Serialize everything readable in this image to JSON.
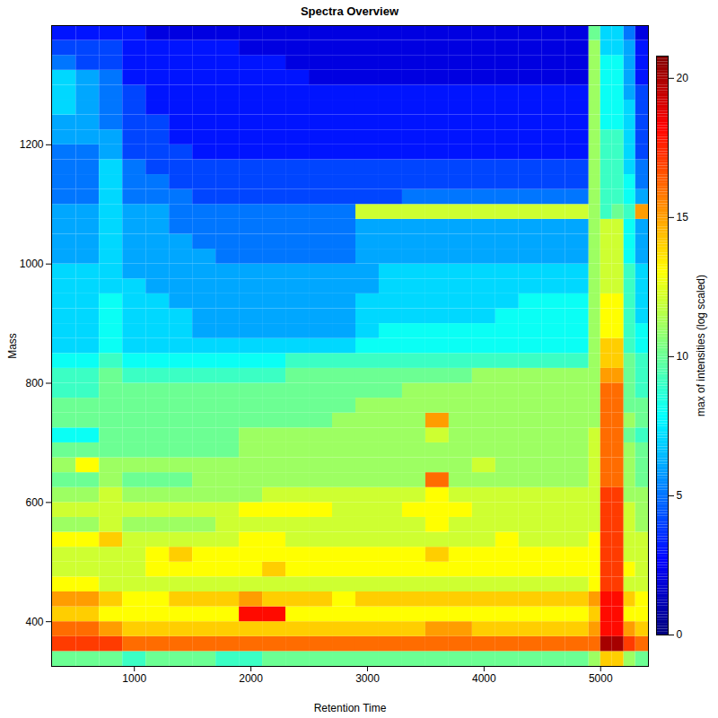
{
  "chart_data": {
    "type": "heatmap",
    "title": "Spectra Overview",
    "x_label": "Retention Time",
    "y_label": "Mass",
    "xlim": [
      290,
      5410
    ],
    "xticks": [
      1000,
      2000,
      3000,
      4000,
      5000
    ],
    "ylim": [
      325,
      1400
    ],
    "yticks": [
      400,
      600,
      800,
      1000,
      1200
    ],
    "x_bins": [
      290,
      500,
      700,
      900,
      1100,
      1300,
      1500,
      1700,
      1900,
      2100,
      2300,
      2500,
      2700,
      2900,
      3100,
      3300,
      3500,
      3700,
      3900,
      4100,
      4300,
      4500,
      4700,
      4900,
      5000,
      5100,
      5200,
      5300,
      5410
    ],
    "y_bins": [
      325,
      350,
      375,
      400,
      425,
      450,
      475,
      500,
      525,
      550,
      575,
      600,
      625,
      650,
      675,
      700,
      725,
      750,
      775,
      800,
      825,
      850,
      875,
      900,
      925,
      950,
      975,
      1000,
      1025,
      1050,
      1075,
      1100,
      1125,
      1150,
      1175,
      1200,
      1225,
      1250,
      1275,
      1300,
      1325,
      1350,
      1375,
      1400
    ],
    "values": [
      [
        10,
        10,
        10,
        9,
        10,
        10,
        10,
        9,
        9,
        10,
        10,
        10,
        10,
        10,
        10,
        10,
        10,
        10,
        10,
        10,
        10,
        10,
        10,
        11,
        14,
        14,
        11,
        10
      ],
      [
        17,
        17,
        17,
        16,
        16,
        16,
        16,
        16,
        16,
        16,
        16,
        16,
        16,
        16,
        16,
        16,
        16,
        16,
        16,
        16,
        16,
        16,
        16,
        16,
        20,
        20,
        17,
        16
      ],
      [
        16,
        16,
        15,
        14,
        14,
        14,
        14,
        14,
        14,
        14,
        14,
        14,
        14,
        14,
        14,
        14,
        15,
        15,
        14,
        14,
        14,
        14,
        14,
        15,
        18,
        18,
        15,
        14
      ],
      [
        14,
        14,
        13,
        13,
        13,
        13,
        13,
        13,
        18,
        18,
        13,
        13,
        13,
        13,
        13,
        13,
        13,
        13,
        13,
        13,
        13,
        13,
        13,
        14,
        18,
        18,
        13,
        13
      ],
      [
        15,
        15,
        14,
        13,
        13,
        14,
        14,
        14,
        15,
        14,
        14,
        14,
        13,
        14,
        14,
        14,
        14,
        14,
        14,
        14,
        14,
        14,
        14,
        15,
        18,
        18,
        14,
        13
      ],
      [
        13,
        13,
        12,
        12,
        12,
        12,
        12,
        12,
        12,
        12,
        12,
        12,
        12,
        12,
        12,
        12,
        12,
        12,
        12,
        12,
        12,
        12,
        12,
        13,
        17,
        17,
        12,
        12
      ],
      [
        12,
        12,
        12,
        12,
        13,
        13,
        13,
        13,
        13,
        14,
        13,
        13,
        13,
        13,
        13,
        13,
        13,
        13,
        13,
        13,
        13,
        13,
        13,
        13,
        17,
        17,
        13,
        12
      ],
      [
        12,
        12,
        12,
        12,
        13,
        14,
        13,
        13,
        13,
        13,
        13,
        13,
        13,
        13,
        13,
        13,
        14,
        13,
        13,
        13,
        13,
        13,
        13,
        13,
        17,
        17,
        12,
        12
      ],
      [
        13,
        13,
        14,
        12,
        12,
        12,
        12,
        12,
        13,
        13,
        12,
        12,
        12,
        12,
        12,
        12,
        12,
        12,
        12,
        13,
        12,
        12,
        12,
        13,
        17,
        17,
        12,
        12
      ],
      [
        11,
        11,
        12,
        11,
        11,
        11,
        11,
        12,
        12,
        12,
        12,
        12,
        12,
        12,
        12,
        12,
        13,
        12,
        12,
        12,
        12,
        12,
        12,
        12,
        17,
        17,
        12,
        11
      ],
      [
        12,
        12,
        12,
        12,
        12,
        12,
        12,
        12,
        13,
        13,
        13,
        13,
        12,
        12,
        12,
        13,
        13,
        13,
        12,
        12,
        12,
        12,
        12,
        12,
        17,
        17,
        12,
        11
      ],
      [
        11,
        11,
        12,
        11,
        11,
        11,
        11,
        11,
        11,
        12,
        12,
        12,
        12,
        12,
        12,
        12,
        13,
        12,
        12,
        12,
        12,
        12,
        12,
        12,
        17,
        17,
        11,
        11
      ],
      [
        10,
        10,
        11,
        10,
        10,
        10,
        11,
        11,
        11,
        11,
        11,
        11,
        11,
        11,
        11,
        11,
        16,
        11,
        11,
        11,
        11,
        11,
        11,
        12,
        16,
        16,
        11,
        10
      ],
      [
        11,
        13,
        11,
        11,
        11,
        11,
        11,
        11,
        11,
        11,
        11,
        11,
        11,
        11,
        11,
        11,
        11,
        11,
        12,
        11,
        11,
        11,
        11,
        12,
        16,
        16,
        11,
        10
      ],
      [
        10,
        10,
        10,
        10,
        10,
        10,
        10,
        10,
        11,
        11,
        11,
        11,
        11,
        11,
        11,
        11,
        11,
        11,
        11,
        11,
        11,
        11,
        11,
        12,
        16,
        16,
        11,
        10
      ],
      [
        8,
        8,
        10,
        10,
        10,
        10,
        10,
        10,
        11,
        11,
        11,
        11,
        11,
        11,
        11,
        11,
        12,
        11,
        11,
        11,
        11,
        11,
        11,
        12,
        16,
        16,
        10,
        9
      ],
      [
        10,
        10,
        10,
        10,
        10,
        10,
        10,
        10,
        10,
        10,
        10,
        10,
        11,
        11,
        11,
        11,
        15,
        11,
        11,
        11,
        11,
        11,
        11,
        11,
        16,
        16,
        11,
        10
      ],
      [
        10,
        10,
        10,
        10,
        10,
        10,
        10,
        10,
        10,
        10,
        10,
        10,
        10,
        11,
        11,
        11,
        11,
        11,
        11,
        11,
        11,
        11,
        11,
        11,
        16,
        16,
        10,
        10
      ],
      [
        9,
        9,
        10,
        10,
        10,
        10,
        10,
        10,
        10,
        10,
        10,
        10,
        10,
        10,
        10,
        11,
        11,
        11,
        11,
        11,
        11,
        11,
        11,
        11,
        16,
        16,
        10,
        9
      ],
      [
        9,
        9,
        10,
        9,
        9,
        9,
        9,
        9,
        9,
        9,
        10,
        10,
        10,
        10,
        10,
        10,
        10,
        10,
        11,
        11,
        11,
        11,
        11,
        11,
        15,
        15,
        10,
        9
      ],
      [
        8,
        8,
        9,
        8,
        8,
        8,
        8,
        8,
        8,
        8,
        9,
        9,
        9,
        9,
        9,
        9,
        9,
        9,
        9,
        9,
        9,
        9,
        9,
        11,
        14,
        14,
        10,
        9
      ],
      [
        7,
        7,
        8,
        7,
        7,
        7,
        7,
        7,
        7,
        7,
        7,
        7,
        7,
        8,
        8,
        8,
        8,
        8,
        8,
        8,
        8,
        8,
        8,
        11,
        14,
        14,
        9,
        8
      ],
      [
        7,
        7,
        8,
        7,
        7,
        7,
        6,
        6,
        6,
        6,
        6,
        6,
        6,
        7,
        8,
        8,
        8,
        8,
        8,
        8,
        8,
        8,
        8,
        11,
        13,
        13,
        9,
        8
      ],
      [
        7,
        7,
        8,
        7,
        7,
        7,
        6,
        6,
        6,
        6,
        6,
        6,
        6,
        7,
        7,
        7,
        7,
        7,
        7,
        8,
        8,
        8,
        8,
        11,
        13,
        13,
        9,
        7
      ],
      [
        7,
        7,
        8,
        7,
        7,
        6,
        6,
        6,
        6,
        6,
        6,
        6,
        6,
        7,
        7,
        7,
        7,
        7,
        7,
        7,
        8,
        8,
        8,
        11,
        13,
        13,
        9,
        7
      ],
      [
        7,
        7,
        7,
        7,
        6,
        6,
        6,
        6,
        6,
        6,
        6,
        6,
        6,
        6,
        7,
        7,
        7,
        7,
        7,
        7,
        7,
        7,
        7,
        11,
        12,
        12,
        9,
        7
      ],
      [
        7,
        7,
        7,
        6,
        6,
        6,
        6,
        6,
        6,
        6,
        6,
        6,
        6,
        6,
        7,
        7,
        7,
        7,
        7,
        7,
        7,
        7,
        7,
        11,
        12,
        12,
        9,
        7
      ],
      [
        6,
        6,
        7,
        6,
        6,
        6,
        6,
        5,
        5,
        5,
        5,
        5,
        5,
        6,
        6,
        6,
        6,
        6,
        6,
        6,
        6,
        6,
        6,
        11,
        12,
        12,
        8,
        6
      ],
      [
        6,
        6,
        7,
        6,
        6,
        6,
        5,
        5,
        5,
        5,
        5,
        5,
        5,
        6,
        6,
        6,
        6,
        6,
        6,
        6,
        6,
        6,
        6,
        11,
        12,
        12,
        8,
        6
      ],
      [
        6,
        6,
        7,
        6,
        6,
        5,
        5,
        5,
        5,
        5,
        5,
        5,
        5,
        6,
        6,
        6,
        6,
        6,
        6,
        6,
        6,
        6,
        6,
        11,
        12,
        12,
        8,
        6
      ],
      [
        6,
        6,
        7,
        6,
        6,
        5,
        5,
        5,
        5,
        5,
        5,
        5,
        5,
        12,
        12,
        12,
        12,
        12,
        12,
        12,
        12,
        12,
        12,
        11,
        9,
        10,
        9,
        15
      ],
      [
        5,
        5,
        7,
        5,
        5,
        5,
        4,
        4,
        4,
        4,
        4,
        4,
        4,
        4,
        4,
        5,
        5,
        5,
        5,
        5,
        5,
        5,
        5,
        11,
        9,
        9,
        8,
        6
      ],
      [
        5,
        5,
        7,
        5,
        5,
        4,
        4,
        4,
        4,
        4,
        4,
        4,
        4,
        4,
        4,
        4,
        4,
        4,
        4,
        4,
        4,
        4,
        4,
        11,
        9,
        9,
        8,
        5
      ],
      [
        5,
        5,
        7,
        5,
        4,
        4,
        4,
        4,
        4,
        4,
        4,
        4,
        4,
        4,
        4,
        4,
        4,
        4,
        4,
        4,
        4,
        4,
        4,
        11,
        9,
        9,
        7,
        5
      ],
      [
        5,
        5,
        6,
        4,
        4,
        4,
        3,
        3,
        3,
        3,
        3,
        3,
        3,
        3,
        3,
        3,
        3,
        3,
        3,
        3,
        3,
        3,
        3,
        11,
        9,
        9,
        7,
        4
      ],
      [
        6,
        6,
        6,
        4,
        4,
        3,
        3,
        3,
        3,
        3,
        3,
        3,
        3,
        3,
        3,
        3,
        3,
        3,
        3,
        3,
        3,
        3,
        3,
        11,
        9,
        9,
        7,
        4
      ],
      [
        6,
        6,
        5,
        4,
        4,
        3,
        3,
        3,
        3,
        3,
        3,
        3,
        3,
        3,
        3,
        3,
        3,
        3,
        3,
        3,
        3,
        3,
        3,
        11,
        8,
        8,
        7,
        4
      ],
      [
        7,
        6,
        5,
        4,
        3,
        3,
        3,
        3,
        3,
        3,
        3,
        3,
        3,
        3,
        3,
        3,
        3,
        3,
        3,
        3,
        3,
        3,
        3,
        11,
        8,
        8,
        7,
        4
      ],
      [
        7,
        6,
        5,
        4,
        3,
        3,
        3,
        3,
        3,
        3,
        3,
        3,
        3,
        3,
        3,
        3,
        3,
        3,
        3,
        3,
        3,
        3,
        3,
        11,
        8,
        8,
        6,
        4
      ],
      [
        7,
        6,
        5,
        3,
        3,
        3,
        3,
        3,
        3,
        3,
        3,
        2,
        2,
        2,
        2,
        2,
        2,
        2,
        2,
        2,
        2,
        2,
        2,
        11,
        8,
        8,
        6,
        3
      ],
      [
        5,
        4,
        4,
        3,
        3,
        3,
        3,
        3,
        3,
        3,
        2,
        2,
        2,
        2,
        2,
        2,
        2,
        2,
        2,
        2,
        2,
        2,
        2,
        11,
        8,
        8,
        6,
        3
      ],
      [
        4,
        4,
        4,
        3,
        3,
        3,
        3,
        3,
        2,
        2,
        2,
        2,
        2,
        2,
        2,
        2,
        2,
        2,
        2,
        2,
        2,
        2,
        2,
        11,
        7,
        7,
        6,
        3
      ],
      [
        3,
        3,
        3,
        3,
        2,
        2,
        2,
        2,
        2,
        2,
        2,
        2,
        2,
        2,
        2,
        2,
        2,
        2,
        2,
        2,
        2,
        2,
        2,
        10,
        7,
        7,
        5,
        2
      ]
    ],
    "colorbar_label": "max of intensities (log scaled)",
    "colorbar_lim": [
      0,
      20.8
    ],
    "colorbar_ticks": [
      0,
      5,
      10,
      15,
      20
    ]
  }
}
